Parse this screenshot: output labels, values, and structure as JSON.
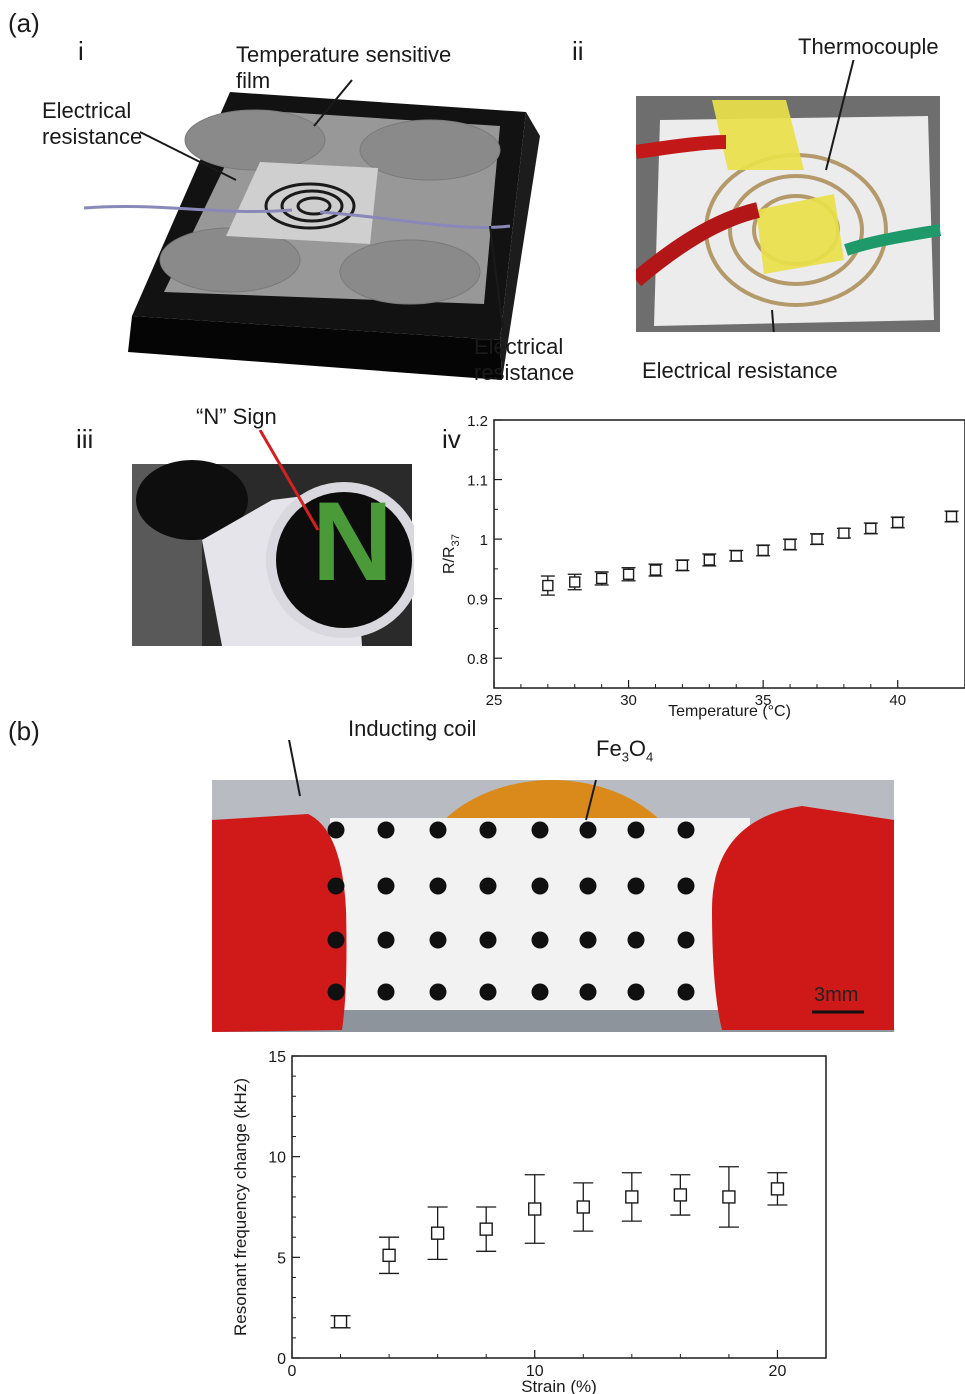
{
  "panel_a": {
    "letter": "(a)",
    "sub_i": {
      "label": "i",
      "ann_film_1": "Temperature sensitive",
      "ann_film_2": "film",
      "ann_res_left_1": "Electrical",
      "ann_res_left_2": "resistance",
      "ann_res_right_1": "Electrical",
      "ann_res_right_2": "resistance"
    },
    "sub_ii": {
      "label": "ii",
      "ann_thermocouple": "Thermocouple",
      "ann_resistance": "Electrical resistance"
    },
    "sub_iii": {
      "label": "iii",
      "ann_sign": "“N” Sign",
      "sign_letter": "N"
    },
    "sub_iv": {
      "label": "iv"
    }
  },
  "panel_b": {
    "letter": "(b)",
    "ann_coil": "Inducting coil",
    "ann_fe_base": "Fe",
    "ann_fe_sub1": "3",
    "ann_fe_o": "O",
    "ann_fe_sub2": "4",
    "scale_bar": "3mm"
  },
  "colors": {
    "device_black": "#121212",
    "film_grey": "#9a9a9a",
    "tape_red": "#d01a1a",
    "tape_yellow": "#e9df4a",
    "kapton_orange": "#d98a1a",
    "dot_black": "#101010",
    "sign_green": "#3fa040",
    "sign_red": "#b03a2a"
  },
  "chart_data": [
    {
      "type": "scatter",
      "ylabel_base": "R/R",
      "ylabel_sub": "37",
      "xlabel": "Temperature (°C)",
      "xlim": [
        25,
        42.5
      ],
      "ylim": [
        0.75,
        1.2
      ],
      "xticks": [
        25,
        30,
        35,
        40
      ],
      "yticks": [
        0.8,
        0.9,
        1,
        1.1,
        1.2
      ],
      "ytick_labels": [
        "0.8",
        "0.9",
        "1",
        "1.1",
        "1.2"
      ],
      "x": [
        27,
        28,
        29,
        30,
        31,
        32,
        33,
        34,
        35,
        36,
        37,
        38,
        39,
        40,
        42
      ],
      "y": [
        0.922,
        0.928,
        0.934,
        0.941,
        0.948,
        0.956,
        0.965,
        0.972,
        0.981,
        0.991,
        1.0,
        1.01,
        1.018,
        1.028,
        1.038
      ],
      "err": [
        0.016,
        0.013,
        0.011,
        0.011,
        0.01,
        0.009,
        0.01,
        0.009,
        0.009,
        0.009,
        0.009,
        0.008,
        0.009,
        0.009,
        0.009
      ],
      "marker": "open-square"
    },
    {
      "type": "scatter",
      "ylabel": "Resonant frequency change (kHz)",
      "xlabel": "Strain (%)",
      "xlim": [
        0,
        22
      ],
      "ylim": [
        0,
        15
      ],
      "xticks": [
        0,
        10,
        20
      ],
      "yticks": [
        0,
        5,
        10,
        15
      ],
      "x": [
        2,
        4,
        6,
        8,
        10,
        12,
        14,
        16,
        18,
        20
      ],
      "y": [
        1.8,
        5.1,
        6.2,
        6.4,
        7.4,
        7.5,
        8.0,
        8.1,
        8.0,
        8.4
      ],
      "err": [
        0.3,
        0.9,
        1.3,
        1.1,
        1.7,
        1.2,
        1.2,
        1.0,
        1.5,
        0.8
      ],
      "marker": "open-square"
    }
  ]
}
